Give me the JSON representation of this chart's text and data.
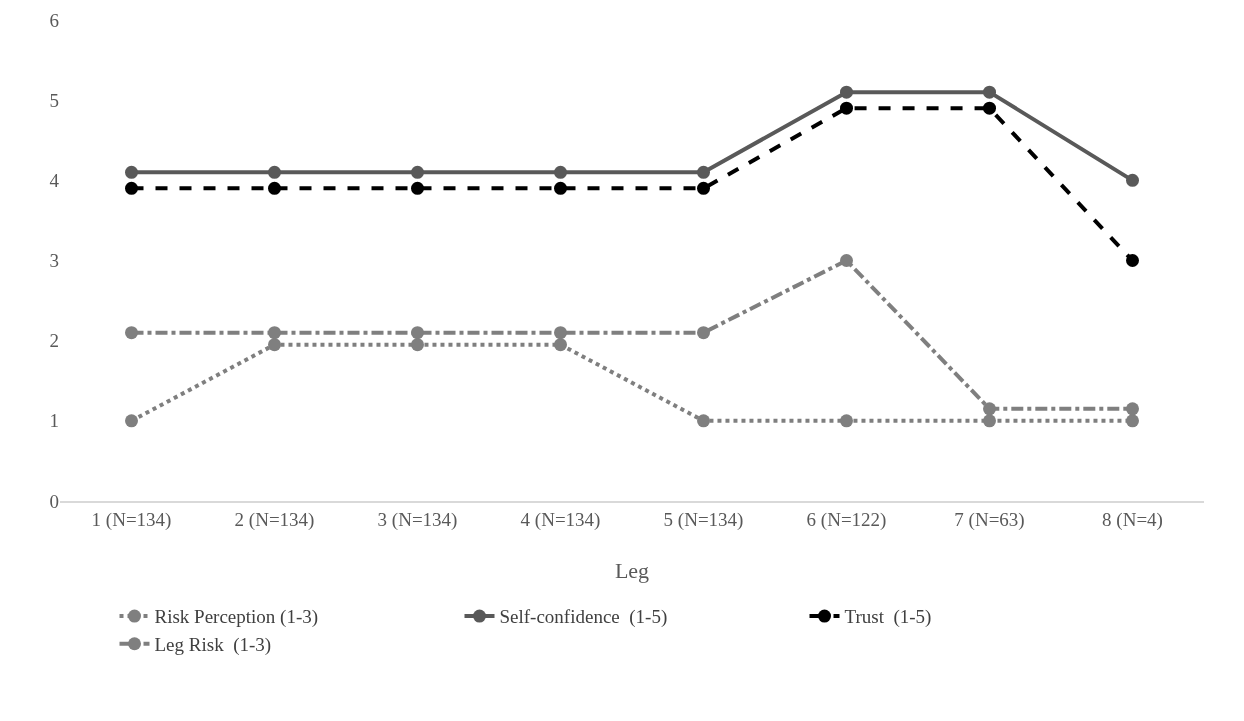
{
  "chart_data": {
    "type": "line",
    "xlabel": "Leg",
    "categories": [
      "1 (N=134)",
      "2 (N=134)",
      "3 (N=134)",
      "4 (N=134)",
      "5 (N=134)",
      "6 (N=122)",
      "7 (N=63)",
      "8 (N=4)"
    ],
    "series": [
      {
        "name": "Risk Perception (1-3)",
        "color": "#7f7f7f",
        "line_style": "dotted",
        "values": [
          1,
          1.95,
          1.95,
          1.95,
          1,
          1,
          1,
          1
        ]
      },
      {
        "name": "Self-confidence  (1-5)",
        "color": "#595959",
        "line_style": "solid",
        "values": [
          4.1,
          4.1,
          4.1,
          4.1,
          4.1,
          5.1,
          5.1,
          4
        ]
      },
      {
        "name": "Trust  (1-5)",
        "color": "#000000",
        "line_style": "dashed",
        "values": [
          3.9,
          3.9,
          3.9,
          3.9,
          3.9,
          4.9,
          4.9,
          3
        ]
      },
      {
        "name": "Leg Risk  (1-3)",
        "color": "#7f7f7f",
        "line_style": "dashdot",
        "values": [
          2.1,
          2.1,
          2.1,
          2.1,
          2.1,
          3,
          1.15,
          1.15
        ]
      }
    ],
    "ylim": [
      0,
      6
    ],
    "yticks": [
      0,
      1,
      2,
      3,
      4,
      5,
      6
    ],
    "grid": false,
    "legend": "bottom",
    "marker": "circle"
  }
}
